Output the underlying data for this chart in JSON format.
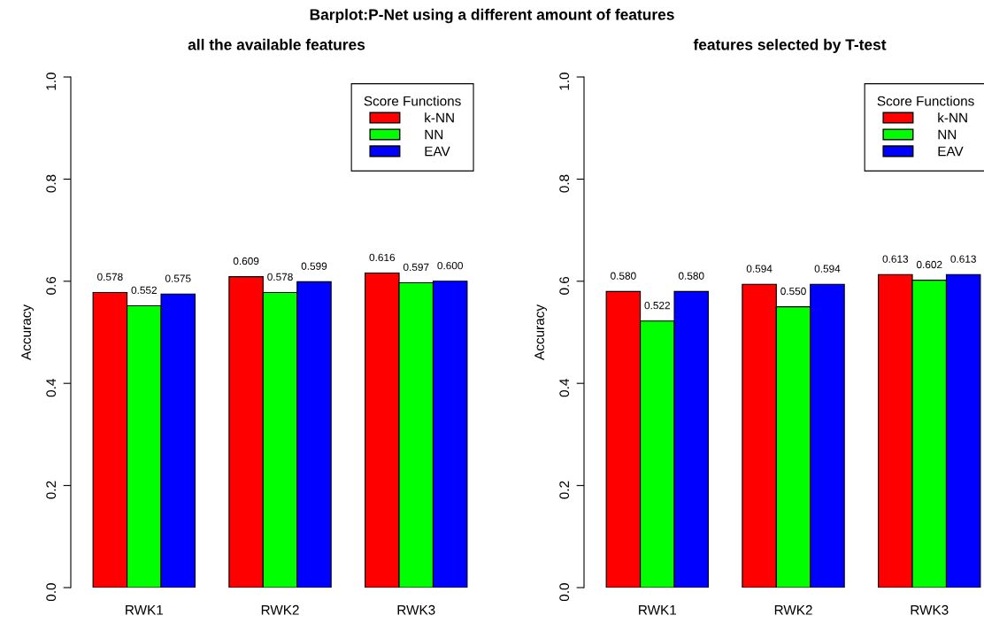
{
  "chart_data": [
    {
      "type": "bar",
      "title": "Barplot:P-Net using a different amount of features",
      "subtitle": "all the available features",
      "ylabel": "Accuracy",
      "categories": [
        "RWK1",
        "RWK2",
        "RWK3"
      ],
      "series": [
        {
          "name": "k-NN",
          "color": "#ff0000",
          "values": [
            0.578,
            0.609,
            0.616
          ],
          "value_labels": [
            "0.578",
            "0.609",
            "0.616"
          ]
        },
        {
          "name": "NN",
          "color": "#00ff00",
          "values": [
            0.552,
            0.578,
            0.597
          ],
          "value_labels": [
            "0.552",
            "0.578",
            "0.597"
          ]
        },
        {
          "name": "EAV",
          "color": "#0000ff",
          "values": [
            0.575,
            0.599,
            0.6
          ],
          "value_labels": [
            "0.575",
            "0.599",
            "0.600"
          ]
        }
      ],
      "ylim": [
        0,
        1
      ],
      "yticks": [
        {
          "value": 0,
          "label": "0.0"
        },
        {
          "value": 0.2,
          "label": "0.2"
        },
        {
          "value": 0.4,
          "label": "0.4"
        },
        {
          "value": 0.6,
          "label": "0.6"
        },
        {
          "value": 0.8,
          "label": "0.8"
        },
        {
          "value": 1,
          "label": "1.0"
        }
      ],
      "legend": "top right",
      "legend_title": "Score Functions",
      "grid": false
    },
    {
      "type": "bar",
      "subtitle": "features selected by T-test",
      "ylabel": "Accuracy",
      "categories": [
        "RWK1",
        "RWK2",
        "RWK3"
      ],
      "series": [
        {
          "name": "k-NN",
          "color": "#ff0000",
          "values": [
            0.58,
            0.594,
            0.613
          ],
          "value_labels": [
            "0.580",
            "0.594",
            "0.613"
          ]
        },
        {
          "name": "NN",
          "color": "#00ff00",
          "values": [
            0.522,
            0.55,
            0.602
          ],
          "value_labels": [
            "0.522",
            "0.550",
            "0.602"
          ]
        },
        {
          "name": "EAV",
          "color": "#0000ff",
          "values": [
            0.58,
            0.594,
            0.613
          ],
          "value_labels": [
            "0.580",
            "0.594",
            "0.613"
          ]
        }
      ],
      "ylim": [
        0,
        1
      ],
      "yticks": [
        {
          "value": 0,
          "label": "0.0"
        },
        {
          "value": 0.2,
          "label": "0.2"
        },
        {
          "value": 0.4,
          "label": "0.4"
        },
        {
          "value": 0.6,
          "label": "0.6"
        },
        {
          "value": 0.8,
          "label": "0.8"
        },
        {
          "value": 1,
          "label": "1.0"
        }
      ],
      "legend": "top right",
      "legend_title": "Score Functions",
      "grid": false
    }
  ]
}
